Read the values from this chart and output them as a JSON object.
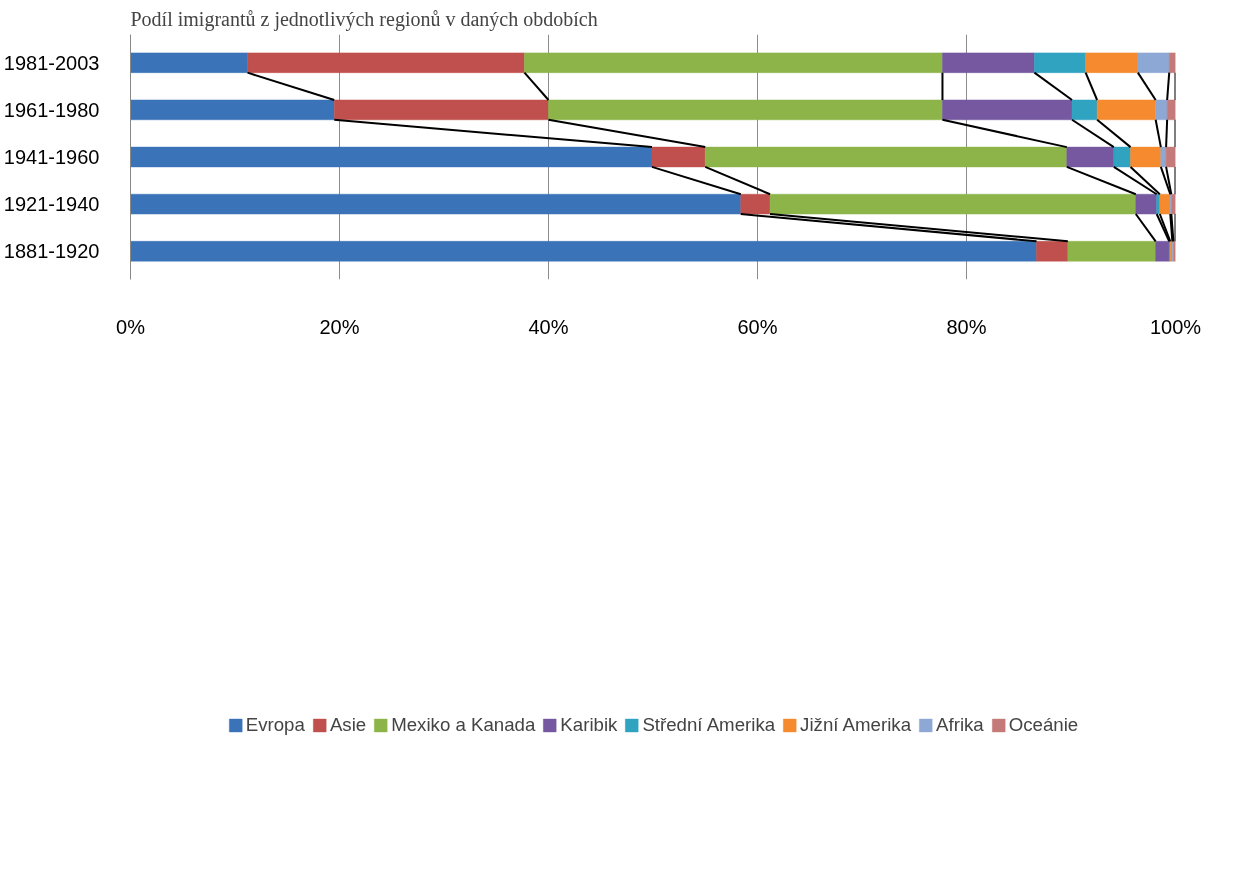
{
  "chart_data": {
    "type": "bar",
    "orientation": "horizontal",
    "stacked": true,
    "title": "Podíl imigrantů z jednotlivých regionů v daných obdobích",
    "categories": [
      "1981-2003",
      "1961-1980",
      "1941-1960",
      "1921-1940",
      "1881-1920"
    ],
    "series": [
      {
        "name": "Evropa",
        "color": "#3b73b9",
        "values": [
          11.2,
          19.5,
          49.9,
          58.4,
          86.7
        ]
      },
      {
        "name": "Asie",
        "color": "#c0504d",
        "values": [
          26.5,
          20.5,
          5.1,
          2.8,
          3.0
        ]
      },
      {
        "name": "Mexiko a Kanada",
        "color": "#8db449",
        "values": [
          40.0,
          37.7,
          34.6,
          35.0,
          8.4
        ]
      },
      {
        "name": "Karibik",
        "color": "#7558a0",
        "values": [
          8.8,
          12.4,
          4.5,
          2.0,
          1.3
        ]
      },
      {
        "name": "Střední Amerika",
        "color": "#2fa3c0",
        "values": [
          4.9,
          2.4,
          1.6,
          0.3,
          0.1
        ]
      },
      {
        "name": "Jižní Amerika",
        "color": "#f58b2e",
        "values": [
          5.0,
          5.6,
          2.9,
          1.0,
          0.2
        ]
      },
      {
        "name": "Afrika",
        "color": "#8ea8d6",
        "values": [
          3.0,
          1.1,
          0.5,
          0.1,
          0.1
        ]
      },
      {
        "name": "Oceánie",
        "color": "#c47a78",
        "values": [
          0.6,
          0.8,
          0.9,
          0.4,
          0.2
        ]
      }
    ],
    "xlim": [
      0,
      100
    ],
    "xticks": [
      {
        "value": 0,
        "label": "0%"
      },
      {
        "value": 20,
        "label": "20%"
      },
      {
        "value": 40,
        "label": "40%"
      },
      {
        "value": 60,
        "label": "60%"
      },
      {
        "value": 80,
        "label": "80%"
      },
      {
        "value": 100,
        "label": "100%"
      }
    ],
    "grid": "x",
    "legend": "bottom"
  }
}
